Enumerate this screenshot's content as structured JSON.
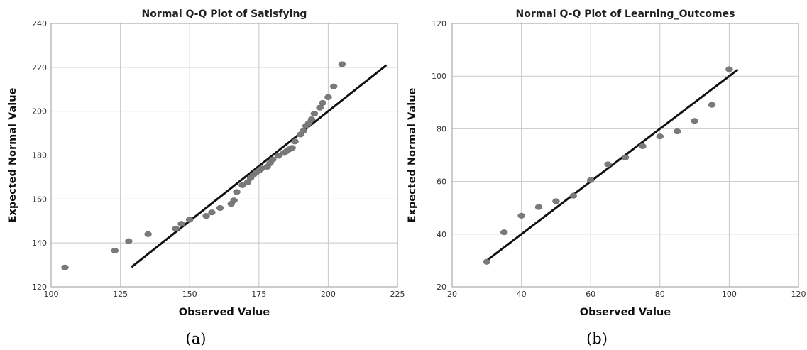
{
  "chart_data": [
    {
      "type": "scatter",
      "title": "Normal Q-Q Plot of Satisfying",
      "xlabel": "Observed Value",
      "ylabel": "Expected Normal Value",
      "caption": "(a)",
      "xlim": [
        100,
        225
      ],
      "ylim": [
        120,
        240
      ],
      "xticks": [
        100,
        125,
        150,
        175,
        200,
        225
      ],
      "yticks": [
        120,
        140,
        160,
        180,
        200,
        220,
        240
      ],
      "grid": true,
      "colors": {
        "points": "#7a7a7a",
        "line": "#111111"
      },
      "reference_line": [
        [
          129,
          129
        ],
        [
          221,
          221
        ]
      ],
      "points": [
        [
          105,
          128.8
        ],
        [
          123,
          136.5
        ],
        [
          128,
          140.8
        ],
        [
          135,
          144.0
        ],
        [
          145,
          146.5
        ],
        [
          147,
          148.7
        ],
        [
          150,
          150.6
        ],
        [
          156,
          152.3
        ],
        [
          158,
          153.9
        ],
        [
          161,
          155.9
        ],
        [
          165,
          157.8
        ],
        [
          166,
          159.4
        ],
        [
          167,
          163.2
        ],
        [
          169,
          166.3
        ],
        [
          171,
          167.7
        ],
        [
          172,
          169.6
        ],
        [
          173,
          171.0
        ],
        [
          174,
          172.1
        ],
        [
          175,
          172.9
        ],
        [
          176,
          173.9
        ],
        [
          178,
          174.7
        ],
        [
          179,
          176.3
        ],
        [
          180,
          178.0
        ],
        [
          182,
          179.7
        ],
        [
          184,
          181.0
        ],
        [
          185,
          181.8
        ],
        [
          186,
          182.7
        ],
        [
          187,
          183.3
        ],
        [
          188,
          186.2
        ],
        [
          190,
          189.4
        ],
        [
          191,
          191.0
        ],
        [
          192,
          193.3
        ],
        [
          193,
          194.6
        ],
        [
          194,
          196.3
        ],
        [
          195,
          198.9
        ],
        [
          197,
          201.6
        ],
        [
          198,
          203.8
        ],
        [
          200,
          206.4
        ],
        [
          202,
          211.3
        ],
        [
          205,
          221.4
        ]
      ]
    },
    {
      "type": "scatter",
      "title": "Normal Q-Q Plot of Learning_Outcomes",
      "xlabel": "Observed Value",
      "ylabel": "Expected Normal Value",
      "caption": "(b)",
      "xlim": [
        20,
        120
      ],
      "ylim": [
        20,
        120
      ],
      "xticks": [
        20,
        40,
        60,
        80,
        100,
        120
      ],
      "yticks": [
        20,
        40,
        60,
        80,
        100,
        120
      ],
      "grid": true,
      "colors": {
        "points": "#7a7a7a",
        "line": "#111111"
      },
      "reference_line": [
        [
          30,
          30
        ],
        [
          102.5,
          102.5
        ]
      ],
      "points": [
        [
          30,
          29.5
        ],
        [
          35,
          40.7
        ],
        [
          40,
          47.0
        ],
        [
          45,
          50.3
        ],
        [
          50,
          52.5
        ],
        [
          55,
          54.6
        ],
        [
          60,
          60.5
        ],
        [
          65,
          66.5
        ],
        [
          70,
          69.1
        ],
        [
          75,
          73.4
        ],
        [
          80,
          77.1
        ],
        [
          85,
          79.0
        ],
        [
          90,
          83.0
        ],
        [
          95,
          89.1
        ],
        [
          100,
          102.6
        ]
      ]
    }
  ]
}
